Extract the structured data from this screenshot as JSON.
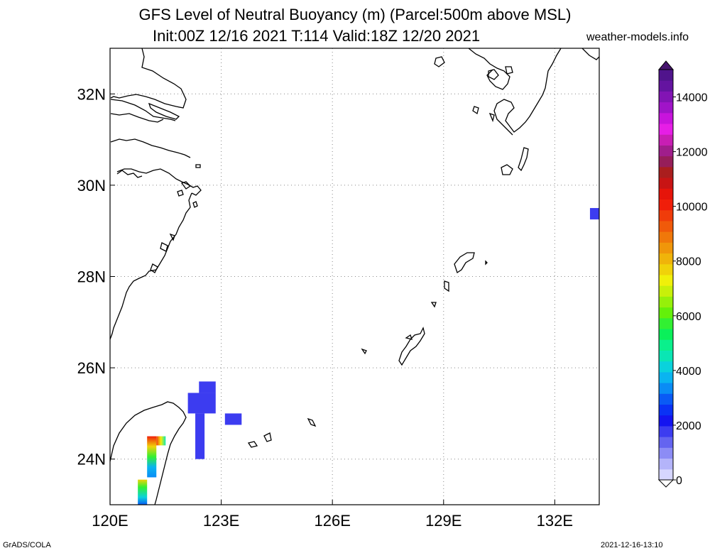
{
  "header": {
    "title_line1": "GFS Level of Neutral Buoyancy (m) (Parcel:500m above MSL)",
    "title_line2": "Init:00Z 12/16 2021 T:114 Valid:18Z 12/20 2021",
    "site": "weather-models.info"
  },
  "footer": {
    "left": "GrADS/COLA",
    "right": "2021-12-16-13:10"
  },
  "map": {
    "lon_range": [
      120,
      133.2
    ],
    "lat_range": [
      23,
      33
    ],
    "lon_ticks": [
      {
        "value": 120,
        "label": "120E"
      },
      {
        "value": 123,
        "label": "123E"
      },
      {
        "value": 126,
        "label": "126E"
      },
      {
        "value": 129,
        "label": "129E"
      },
      {
        "value": 132,
        "label": "132E"
      }
    ],
    "lat_ticks": [
      {
        "value": 24,
        "label": "24N"
      },
      {
        "value": 26,
        "label": "26N"
      },
      {
        "value": 28,
        "label": "28N"
      },
      {
        "value": 30,
        "label": "30N"
      },
      {
        "value": 32,
        "label": "32N"
      }
    ],
    "grid": "dotted"
  },
  "colorbar": {
    "min": 0,
    "max": 15000,
    "labels": [
      {
        "value": 0,
        "label": "0"
      },
      {
        "value": 2000,
        "label": "2000"
      },
      {
        "value": 4000,
        "label": "4000"
      },
      {
        "value": 6000,
        "label": "6000"
      },
      {
        "value": 8000,
        "label": "8000"
      },
      {
        "value": 10000,
        "label": "10000"
      },
      {
        "value": 12000,
        "label": "12000"
      },
      {
        "value": 14000,
        "label": "14000"
      }
    ],
    "colors": [
      "#d6d6ff",
      "#b4b4fa",
      "#8c8cf5",
      "#6464f0",
      "#3c3cf0",
      "#1414f0",
      "#0a32f5",
      "#0a5af5",
      "#0a8cf5",
      "#0ab4f0",
      "#0ad2dc",
      "#0ae6b4",
      "#0af08c",
      "#0af05a",
      "#32f032",
      "#64f00a",
      "#96f00a",
      "#c8f00a",
      "#f0f00a",
      "#f0d20a",
      "#f0b40a",
      "#f0960a",
      "#f0780a",
      "#f05a0a",
      "#f03c0a",
      "#f01e0a",
      "#e6140a",
      "#c81414",
      "#aa1e1e",
      "#961e5a",
      "#a01e8c",
      "#c81eb4",
      "#e61ee6",
      "#c814dc",
      "#a014c8",
      "#8214b4",
      "#6414a0",
      "#50148c"
    ],
    "bounds_colors": {
      "low": "#ffffff",
      "high": "#46146e"
    }
  },
  "field_cells": [
    {
      "lon0": 122.1,
      "lon1": 122.85,
      "lat0": 25.0,
      "lat1": 25.45,
      "value": 1800
    },
    {
      "lon0": 122.4,
      "lon1": 122.85,
      "lat0": 25.45,
      "lat1": 25.7,
      "value": 1800
    },
    {
      "lon0": 122.3,
      "lon1": 122.55,
      "lat0": 24.0,
      "lat1": 25.0,
      "value": 1700
    },
    {
      "lon0": 123.1,
      "lon1": 123.55,
      "lat0": 24.75,
      "lat1": 25.0,
      "value": 1800
    },
    {
      "lon0": 132.95,
      "lon1": 133.2,
      "lat0": 29.25,
      "lat1": 29.5,
      "value": 1900
    },
    {
      "lon0": 121.0,
      "lon1": 121.25,
      "lat0": 24.5,
      "lat1": 23.6,
      "value": 9000,
      "gradient": true
    },
    {
      "lon0": 121.25,
      "lon1": 121.5,
      "lat0": 24.5,
      "lat1": 24.3,
      "value": 7000,
      "gradient": true
    },
    {
      "lon0": 120.75,
      "lon1": 121.0,
      "lat0": 23.55,
      "lat1": 23.0,
      "value": 8500,
      "gradient": true
    }
  ]
}
